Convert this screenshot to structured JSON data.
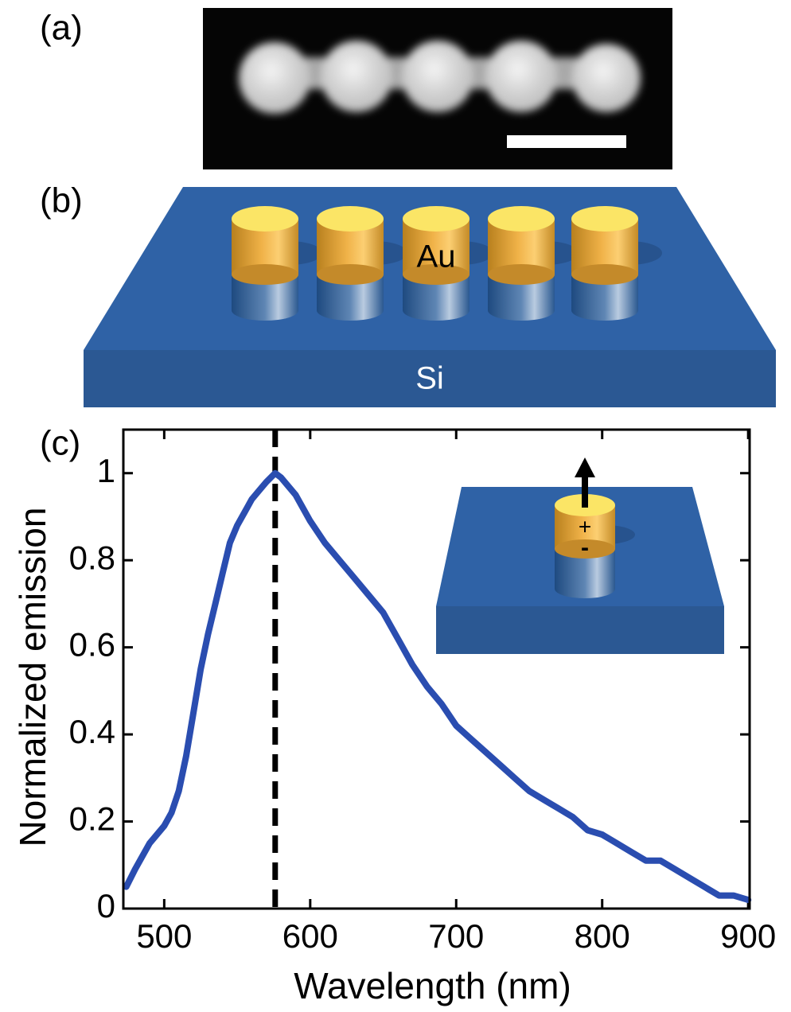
{
  "figure": {
    "panel_labels": [
      "(a)",
      "(b)",
      "(c)"
    ],
    "material_labels": {
      "au": "Au",
      "si": "Si"
    },
    "charge_labels": [
      "+",
      "-"
    ]
  },
  "chart_data": {
    "type": "line",
    "xlabel": "Wavelength (nm)",
    "ylabel": "Normalized emission",
    "color": "#2a4db0",
    "x": [
      474,
      480,
      490,
      500,
      505,
      510,
      515,
      520,
      525,
      530,
      535,
      540,
      545,
      550,
      555,
      560,
      565,
      570,
      576,
      580,
      590,
      600,
      610,
      620,
      630,
      640,
      650,
      660,
      670,
      680,
      690,
      700,
      710,
      720,
      730,
      740,
      750,
      760,
      770,
      780,
      790,
      800,
      810,
      820,
      830,
      840,
      850,
      860,
      870,
      880,
      890,
      900
    ],
    "values": [
      0.05,
      0.09,
      0.15,
      0.19,
      0.22,
      0.27,
      0.35,
      0.45,
      0.55,
      0.63,
      0.7,
      0.77,
      0.84,
      0.88,
      0.91,
      0.94,
      0.96,
      0.98,
      1.0,
      0.99,
      0.95,
      0.89,
      0.84,
      0.8,
      0.76,
      0.72,
      0.68,
      0.62,
      0.56,
      0.51,
      0.47,
      0.42,
      0.39,
      0.36,
      0.33,
      0.3,
      0.27,
      0.25,
      0.23,
      0.21,
      0.18,
      0.17,
      0.15,
      0.13,
      0.11,
      0.11,
      0.09,
      0.07,
      0.05,
      0.03,
      0.03,
      0.02
    ],
    "xlim": [
      472,
      901
    ],
    "ylim": [
      0,
      1.1
    ],
    "xticks": [
      500,
      600,
      700,
      800,
      900
    ],
    "yticks": [
      0,
      0.2,
      0.4,
      0.6,
      0.8,
      1
    ],
    "vline": 576
  }
}
